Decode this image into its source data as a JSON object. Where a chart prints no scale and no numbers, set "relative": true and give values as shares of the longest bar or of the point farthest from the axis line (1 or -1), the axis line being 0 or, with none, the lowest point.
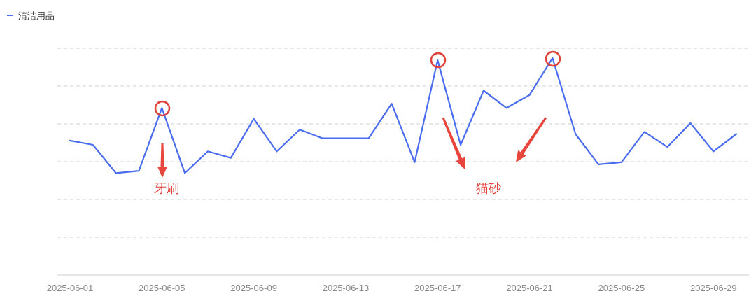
{
  "chart_data": {
    "type": "line",
    "relative": true,
    "grid": "y",
    "legend": "top left",
    "marker": "none",
    "line_style": "solid",
    "categories": [
      "2025-06-01",
      null,
      null,
      null,
      "2025-06-05",
      null,
      null,
      null,
      "2025-06-09",
      null,
      null,
      null,
      "2025-06-13",
      null,
      null,
      null,
      "2025-06-17",
      null,
      null,
      null,
      "2025-06-21",
      null,
      null,
      null,
      "2025-06-25",
      null,
      null,
      null,
      "2025-06-29",
      null
    ],
    "series": [
      {
        "name": "清洁用品",
        "color": "#4a6cf0",
        "values": [
          0.62,
          0.6,
          0.47,
          0.48,
          0.77,
          0.47,
          0.57,
          0.54,
          0.72,
          0.57,
          0.67,
          0.63,
          0.63,
          0.63,
          0.79,
          0.52,
          0.99,
          0.6,
          0.85,
          0.77,
          0.83,
          1.0,
          0.65,
          0.51,
          0.52,
          0.66,
          0.59,
          0.7,
          0.57,
          0.65
        ]
      }
    ],
    "annotations": [
      "牙刷",
      "猫砂"
    ]
  }
}
